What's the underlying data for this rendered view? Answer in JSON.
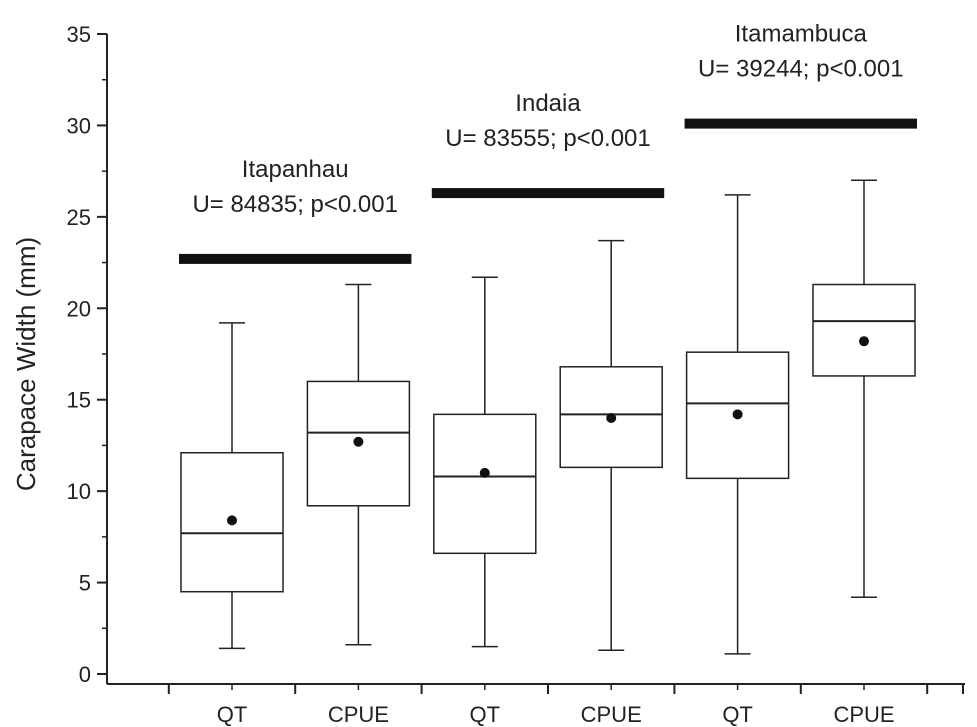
{
  "chart_data": {
    "type": "box",
    "ylabel": "Carapace Width (mm)",
    "xlabel": "",
    "ylim": [
      0,
      35
    ],
    "yticks": [
      "0",
      "5",
      "10",
      "15",
      "20",
      "25",
      "30",
      "35"
    ],
    "categories": [
      "QT",
      "CPUE",
      "QT",
      "CPUE",
      "QT",
      "CPUE"
    ],
    "boxes": [
      {
        "category": "QT",
        "min": 1.4,
        "q1": 4.5,
        "median": 7.7,
        "q3": 12.1,
        "max": 19.2,
        "mean": 8.4
      },
      {
        "category": "CPUE",
        "min": 1.6,
        "q1": 9.2,
        "median": 13.2,
        "q3": 16.0,
        "max": 21.3,
        "mean": 12.7
      },
      {
        "category": "QT",
        "min": 1.5,
        "q1": 6.6,
        "median": 10.8,
        "q3": 14.2,
        "max": 21.7,
        "mean": 11.0
      },
      {
        "category": "CPUE",
        "min": 1.3,
        "q1": 11.3,
        "median": 14.2,
        "q3": 16.8,
        "max": 23.7,
        "mean": 14.0
      },
      {
        "category": "QT",
        "min": 1.1,
        "q1": 10.7,
        "median": 14.8,
        "q3": 17.6,
        "max": 26.2,
        "mean": 14.2
      },
      {
        "category": "CPUE",
        "min": 4.2,
        "q1": 16.3,
        "median": 19.3,
        "q3": 21.3,
        "max": 27.0,
        "mean": 18.2
      }
    ],
    "groups": [
      {
        "name": "Itapanhau",
        "stat": "U= 84835; p<0.001",
        "bar_y": 22.7
      },
      {
        "name": "Indaia",
        "stat": "U= 83555; p<0.001",
        "bar_y": 26.3
      },
      {
        "name": "Itamambuca",
        "stat": "U= 39244; p<0.001",
        "bar_y": 30.1
      }
    ],
    "grid": false,
    "legend": "none"
  }
}
